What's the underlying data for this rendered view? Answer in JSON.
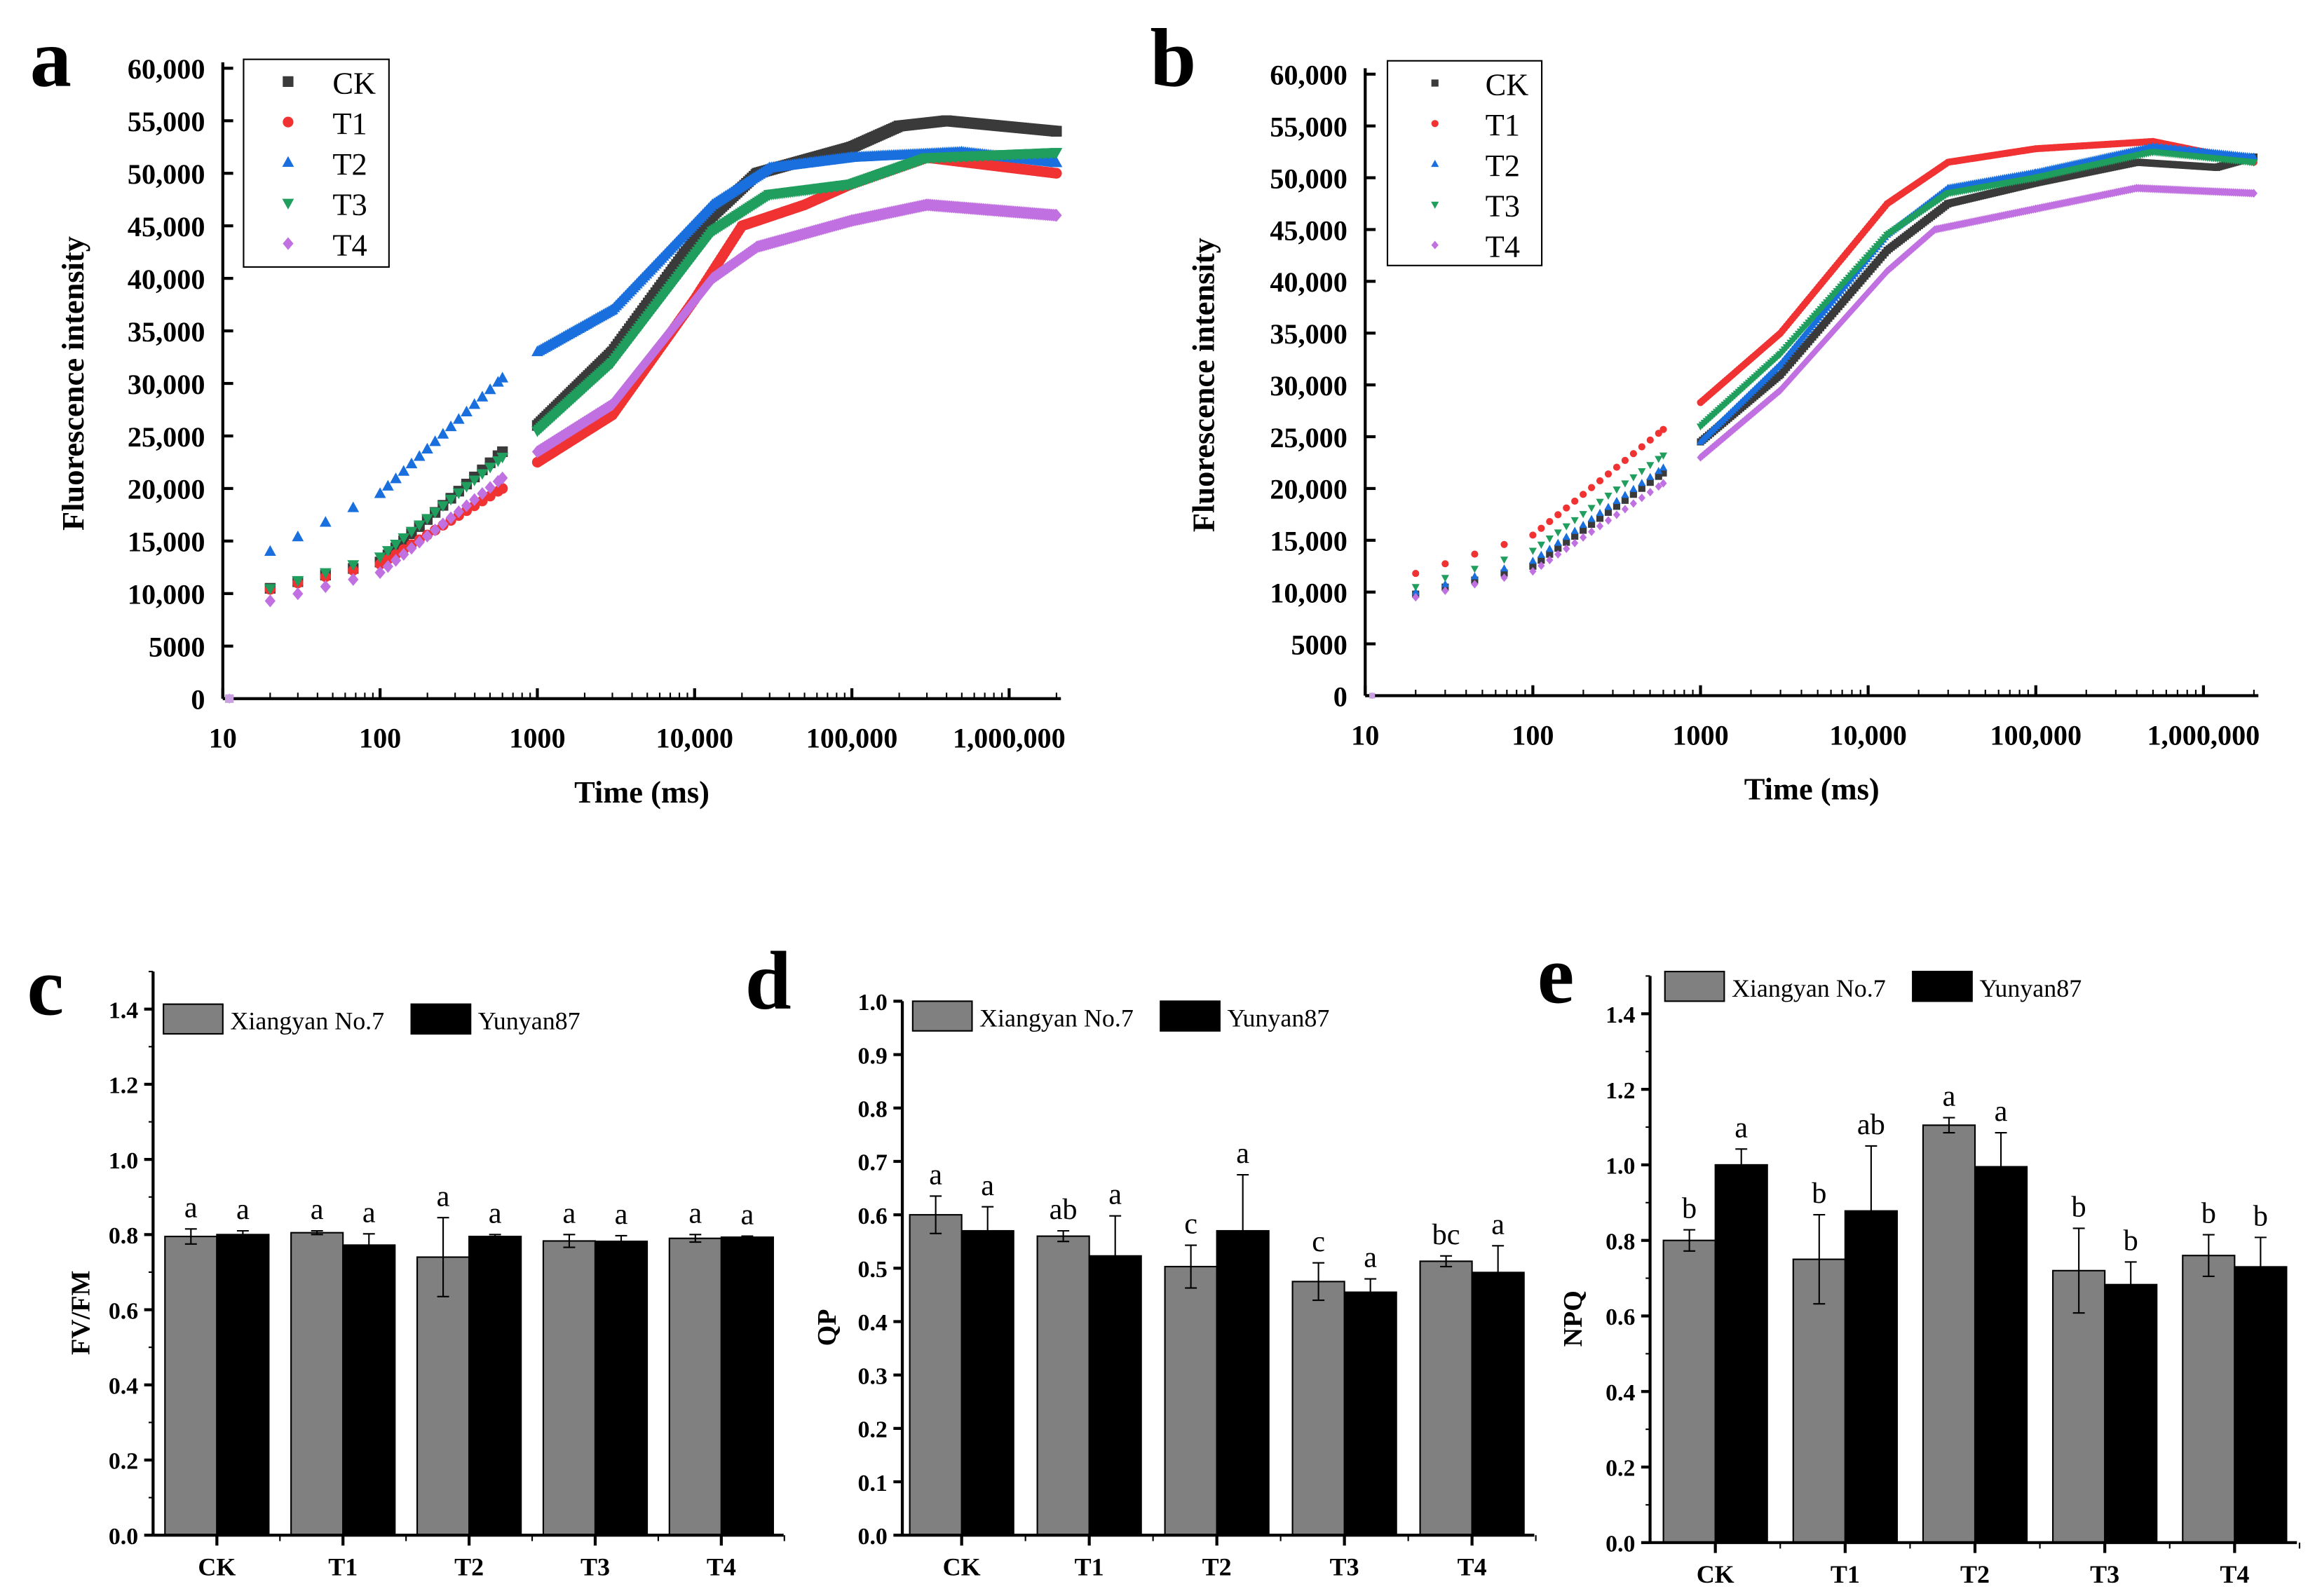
{
  "chart_data": [
    {
      "panel_label": "a",
      "type": "scatter",
      "xscale": "log",
      "xlabel": "Time (ms)",
      "ylabel": "Fluorescence intensity",
      "xlim": [
        10,
        2000000
      ],
      "ylim": [
        0,
        60000
      ],
      "xticks": [
        "10",
        "100",
        "1000",
        "10,000",
        "100,000",
        "1,000,000"
      ],
      "yticks": [
        "0",
        "5000",
        "10,000",
        "15,000",
        "20,000",
        "25,000",
        "30,000",
        "35,000",
        "40,000",
        "45,000",
        "50,000",
        "55,000",
        "60,000"
      ],
      "legend": "top-left",
      "series": [
        {
          "name": "CK",
          "color": "#3a3a3a",
          "marker": "square",
          "points": [
            [
              20,
              10500
            ],
            [
              100,
              13000
            ],
            [
              600,
              23500
            ],
            [
              1000,
              26000
            ],
            [
              3000,
              33000
            ],
            [
              13000,
              46000
            ],
            [
              25000,
              50000
            ],
            [
              100000,
              52500
            ],
            [
              200000,
              54500
            ],
            [
              400000,
              55000
            ],
            [
              2000000,
              54000
            ]
          ]
        },
        {
          "name": "T1",
          "color": "#f03232",
          "marker": "circle",
          "points": [
            [
              20,
              10400
            ],
            [
              100,
              12800
            ],
            [
              600,
              20000
            ],
            [
              1000,
              22500
            ],
            [
              3000,
              27000
            ],
            [
              10000,
              38000
            ],
            [
              20000,
              45000
            ],
            [
              50000,
              47000
            ],
            [
              100000,
              49000
            ],
            [
              300000,
              51500
            ],
            [
              2000000,
              50000
            ]
          ]
        },
        {
          "name": "T2",
          "color": "#1a6fdf",
          "marker": "triangle-up",
          "points": [
            [
              20,
              14000
            ],
            [
              100,
              19500
            ],
            [
              600,
              30500
            ],
            [
              1000,
              33000
            ],
            [
              3000,
              37000
            ],
            [
              13000,
              47000
            ],
            [
              30000,
              50500
            ],
            [
              100000,
              51500
            ],
            [
              500000,
              52000
            ],
            [
              2000000,
              51000
            ]
          ]
        },
        {
          "name": "T3",
          "color": "#1f9e5e",
          "marker": "triangle-down",
          "points": [
            [
              20,
              10500
            ],
            [
              100,
              13500
            ],
            [
              600,
              23000
            ],
            [
              1000,
              25500
            ],
            [
              3000,
              32000
            ],
            [
              13000,
              44500
            ],
            [
              30000,
              48000
            ],
            [
              100000,
              49000
            ],
            [
              300000,
              51500
            ],
            [
              2000000,
              52000
            ]
          ]
        },
        {
          "name": "T4",
          "color": "#c070e0",
          "marker": "diamond",
          "points": [
            [
              20,
              9300
            ],
            [
              100,
              12000
            ],
            [
              600,
              21000
            ],
            [
              1000,
              23500
            ],
            [
              3000,
              28000
            ],
            [
              13000,
              40000
            ],
            [
              25000,
              43000
            ],
            [
              100000,
              45500
            ],
            [
              300000,
              47000
            ],
            [
              2000000,
              46000
            ]
          ]
        }
      ]
    },
    {
      "panel_label": "b",
      "type": "scatter",
      "xscale": "log",
      "xlabel": "Time (ms)",
      "ylabel": "Fluorescence intensity",
      "xlim": [
        10,
        2000000
      ],
      "ylim": [
        0,
        60000
      ],
      "xticks": [
        "10",
        "100",
        "1000",
        "10,000",
        "100,000",
        "1,000,000"
      ],
      "yticks": [
        "0",
        "5000",
        "10,000",
        "15,000",
        "20,000",
        "25,000",
        "30,000",
        "35,000",
        "40,000",
        "45,000",
        "50,000",
        "55,000",
        "60,000"
      ],
      "legend": "top-left",
      "series": [
        {
          "name": "CK",
          "color": "#3a3a3a",
          "marker": "square",
          "points": [
            [
              20,
              9800
            ],
            [
              100,
              12500
            ],
            [
              600,
              21500
            ],
            [
              1000,
              24500
            ],
            [
              3000,
              31000
            ],
            [
              13000,
              43000
            ],
            [
              30000,
              47500
            ],
            [
              100000,
              49500
            ],
            [
              400000,
              51500
            ],
            [
              1200000,
              51000
            ],
            [
              2000000,
              52000
            ]
          ]
        },
        {
          "name": "T1",
          "color": "#f03232",
          "marker": "circle",
          "points": [
            [
              20,
              11800
            ],
            [
              100,
              15500
            ],
            [
              600,
              25700
            ],
            [
              1000,
              28300
            ],
            [
              3000,
              35000
            ],
            [
              13000,
              47500
            ],
            [
              30000,
              51500
            ],
            [
              100000,
              52800
            ],
            [
              500000,
              53500
            ],
            [
              2000000,
              51500
            ]
          ]
        },
        {
          "name": "T2",
          "color": "#1a6fdf",
          "marker": "triangle-up",
          "points": [
            [
              20,
              10000
            ],
            [
              100,
              13000
            ],
            [
              600,
              22000
            ],
            [
              1000,
              24500
            ],
            [
              3000,
              32000
            ],
            [
              13000,
              44500
            ],
            [
              30000,
              49000
            ],
            [
              100000,
              50500
            ],
            [
              500000,
              53000
            ],
            [
              2000000,
              52000
            ]
          ]
        },
        {
          "name": "T3",
          "color": "#1f9e5e",
          "marker": "triangle-down",
          "points": [
            [
              20,
              10500
            ],
            [
              100,
              14000
            ],
            [
              600,
              23200
            ],
            [
              1000,
              26000
            ],
            [
              3000,
              33000
            ],
            [
              13000,
              44500
            ],
            [
              30000,
              48500
            ],
            [
              100000,
              50000
            ],
            [
              500000,
              52500
            ],
            [
              2000000,
              51500
            ]
          ]
        },
        {
          "name": "T4",
          "color": "#c070e0",
          "marker": "diamond",
          "points": [
            [
              20,
              9500
            ],
            [
              100,
              12000
            ],
            [
              600,
              20500
            ],
            [
              1000,
              23000
            ],
            [
              3000,
              29500
            ],
            [
              13000,
              41000
            ],
            [
              25000,
              45000
            ],
            [
              100000,
              47000
            ],
            [
              400000,
              49000
            ],
            [
              2000000,
              48500
            ]
          ]
        }
      ]
    },
    {
      "panel_label": "c",
      "type": "bar",
      "ylabel": "FV/FM",
      "ylim": [
        0,
        1.5
      ],
      "yticks": [
        "0.0",
        "0.2",
        "0.4",
        "0.6",
        "0.8",
        "1.0",
        "1.2",
        "1.4"
      ],
      "categories": [
        "CK",
        "T1",
        "T2",
        "T3",
        "T4"
      ],
      "legend": "top-left",
      "series": [
        {
          "name": "Xiangyan No.7",
          "color": "#808080",
          "values": [
            0.795,
            0.805,
            0.74,
            0.783,
            0.79
          ],
          "errors": [
            0.02,
            0.005,
            0.105,
            0.017,
            0.01
          ],
          "letters": [
            "a",
            "a",
            "a",
            "a",
            "a"
          ]
        },
        {
          "name": "Yunyan87",
          "color": "#000000",
          "values": [
            0.8,
            0.772,
            0.795,
            0.782,
            0.793
          ],
          "errors": [
            0.01,
            0.03,
            0.005,
            0.015,
            0.003
          ],
          "letters": [
            "a",
            "a",
            "a",
            "a",
            "a"
          ]
        }
      ]
    },
    {
      "panel_label": "d",
      "type": "bar",
      "ylabel": "QP",
      "ylim": [
        0,
        1.0
      ],
      "yticks": [
        "0.0",
        "0.1",
        "0.2",
        "0.3",
        "0.4",
        "0.5",
        "0.6",
        "0.7",
        "0.8",
        "0.9",
        "1.0"
      ],
      "categories": [
        "CK",
        "T1",
        "T2",
        "T3",
        "T4"
      ],
      "legend": "top-left",
      "series": [
        {
          "name": "Xiangyan No.7",
          "color": "#808080",
          "values": [
            0.6,
            0.56,
            0.503,
            0.475,
            0.513
          ],
          "errors": [
            0.035,
            0.01,
            0.04,
            0.035,
            0.01
          ],
          "letters": [
            "a",
            "ab",
            "c",
            "c",
            "bc"
          ]
        },
        {
          "name": "Yunyan87",
          "color": "#000000",
          "values": [
            0.57,
            0.523,
            0.57,
            0.455,
            0.492
          ],
          "errors": [
            0.045,
            0.075,
            0.105,
            0.025,
            0.05
          ],
          "letters": [
            "a",
            "a",
            "a",
            "a",
            "a"
          ]
        }
      ]
    },
    {
      "panel_label": "e",
      "type": "bar",
      "ylabel": "NPQ",
      "ylim": [
        0,
        1.5
      ],
      "yticks": [
        "0.0",
        "0.2",
        "0.4",
        "0.6",
        "0.8",
        "1.0",
        "1.2",
        "1.4"
      ],
      "categories": [
        "CK",
        "T1",
        "T2",
        "T3",
        "T4"
      ],
      "legend": "top-left",
      "series": [
        {
          "name": "Xiangyan No.7",
          "color": "#808080",
          "values": [
            0.8,
            0.75,
            1.105,
            0.72,
            0.76
          ],
          "errors": [
            0.028,
            0.118,
            0.02,
            0.112,
            0.055
          ],
          "letters": [
            "b",
            "b",
            "a",
            "b",
            "b"
          ]
        },
        {
          "name": "Yunyan87",
          "color": "#000000",
          "values": [
            1.0,
            0.878,
            0.995,
            0.683,
            0.73
          ],
          "errors": [
            0.042,
            0.172,
            0.09,
            0.06,
            0.078
          ],
          "letters": [
            "a",
            "ab",
            "a",
            "b",
            "b"
          ]
        }
      ]
    }
  ]
}
